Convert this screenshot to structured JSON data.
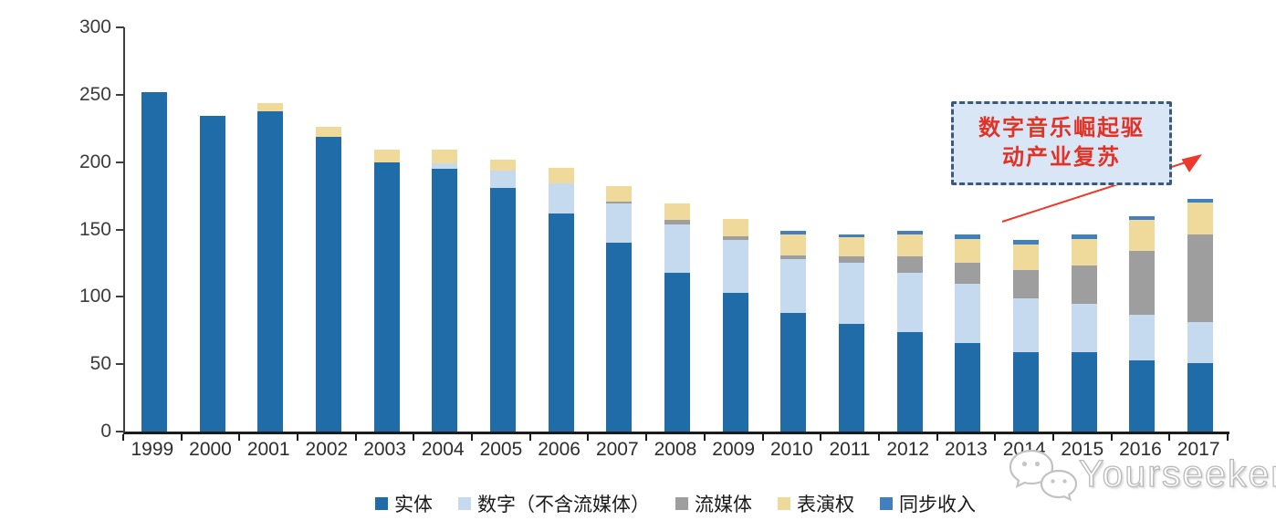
{
  "annotation": {
    "line1": "数字音乐崛起驱",
    "line2": "动产业复苏",
    "text_color": "#e23226",
    "box_fill": "#d9e6f6",
    "box_border": "#3d5878",
    "arrow_color": "#ed382b"
  },
  "watermark": {
    "text": "Yourseeker",
    "logo": "chat-bubbles-logo"
  },
  "chart_data": {
    "type": "bar",
    "stacked": true,
    "title": "",
    "xlabel": "",
    "ylabel": "",
    "ylim": [
      0,
      300
    ],
    "yticks": [
      0,
      50,
      100,
      150,
      200,
      250,
      300
    ],
    "grid": false,
    "legend_position": "bottom",
    "categories": [
      "1999",
      "2000",
      "2001",
      "2002",
      "2003",
      "2004",
      "2005",
      "2006",
      "2007",
      "2008",
      "2009",
      "2010",
      "2011",
      "2012",
      "2013",
      "2014",
      "2015",
      "2016",
      "2017"
    ],
    "series": [
      {
        "name": "实体",
        "color": "#1f6ca9",
        "values": [
          252,
          234,
          238,
          219,
          200,
          195,
          181,
          162,
          140,
          118,
          103,
          88,
          80,
          74,
          66,
          59,
          59,
          53,
          51
        ]
      },
      {
        "name": "数字（不含流媒体）",
        "color": "#c5d9ef",
        "values": [
          0,
          0,
          0,
          0,
          0,
          4,
          13,
          22,
          29,
          36,
          39,
          40,
          45,
          44,
          44,
          40,
          36,
          34,
          30
        ]
      },
      {
        "name": "流媒体",
        "color": "#9e9e9e",
        "values": [
          0,
          0,
          0,
          0,
          0,
          0,
          0,
          0,
          2,
          3,
          3,
          3,
          5,
          12,
          15,
          21,
          28,
          47,
          65
        ]
      },
      {
        "name": "表演权",
        "color": "#efda9c",
        "values": [
          0,
          0,
          6,
          7,
          9,
          10,
          8,
          12,
          11,
          12,
          13,
          15,
          14,
          16,
          18,
          19,
          20,
          23,
          24
        ]
      },
      {
        "name": "同步收入",
        "color": "#4180be",
        "values": [
          0,
          0,
          0,
          0,
          0,
          0,
          0,
          0,
          0,
          0,
          0,
          3,
          2,
          3,
          3,
          3,
          3,
          3,
          3
        ]
      }
    ],
    "totals": [
      252,
      234,
      244,
      226,
      209,
      209,
      202,
      196,
      182,
      169,
      158,
      149,
      146,
      149,
      146,
      142,
      146,
      160,
      173
    ]
  }
}
